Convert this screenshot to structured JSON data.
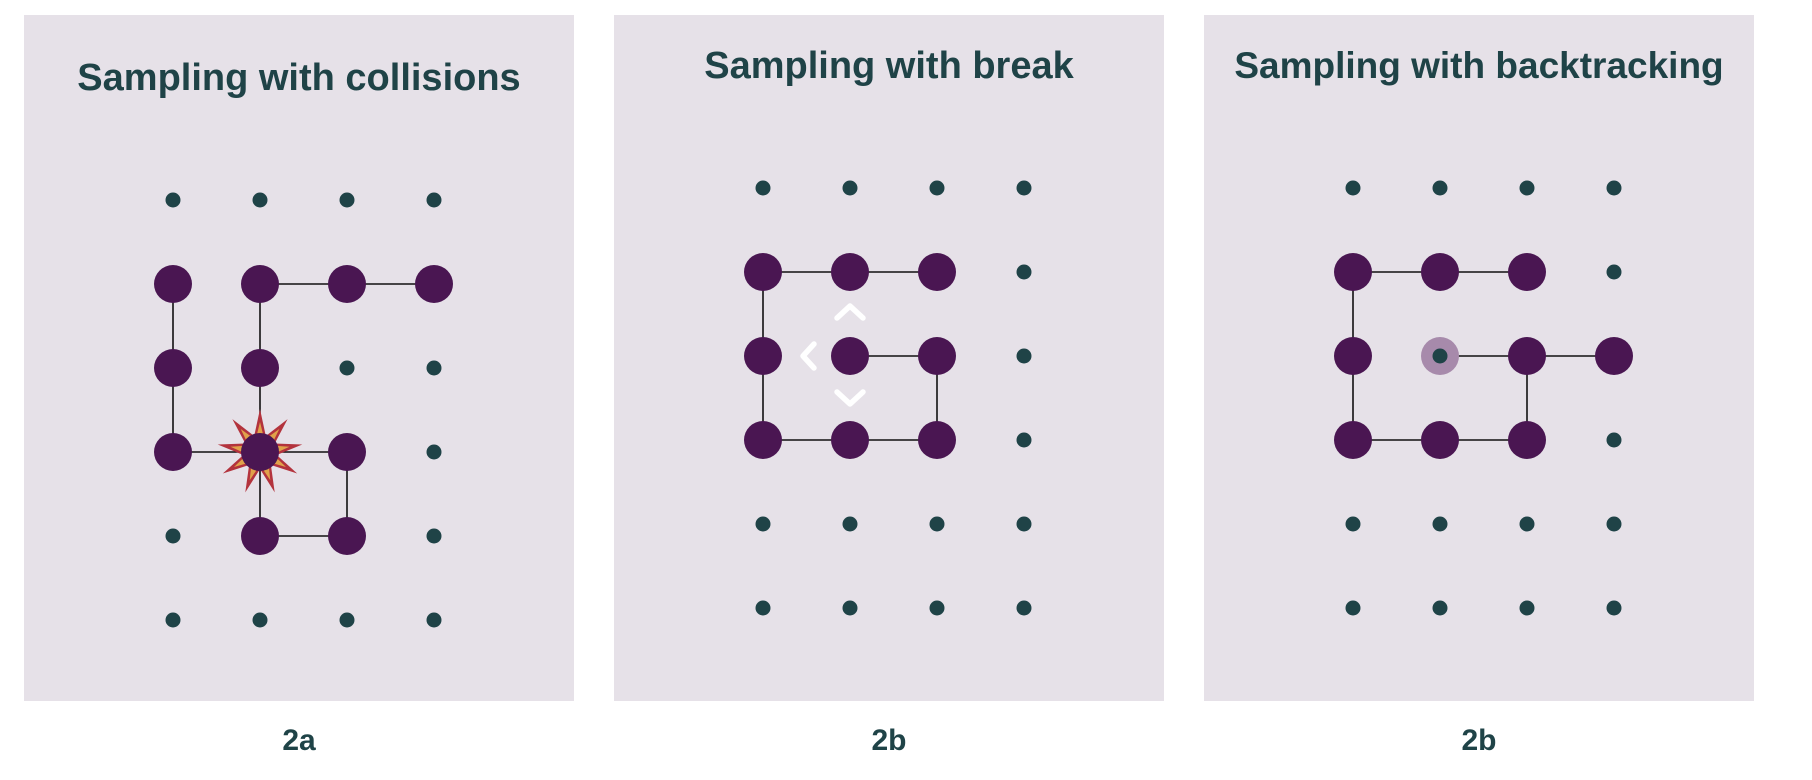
{
  "colors": {
    "panel_bg": "#e6e1e8",
    "text": "#1f4347",
    "small_dot": "#1f4347",
    "visited_node": "#4a1652",
    "edge": "#111111",
    "collision_outer": "#b3333d",
    "collision_inner": "#e0a24a",
    "backtrack_node": "#a78aab",
    "arrow": "#ffffff"
  },
  "panels": [
    {
      "title": "Sampling with collisions",
      "caption": "2a",
      "grid": {
        "cols": 4,
        "rows": 6
      },
      "visited": [
        [
          0,
          1
        ],
        [
          1,
          1
        ],
        [
          2,
          1
        ],
        [
          3,
          1
        ],
        [
          0,
          2
        ],
        [
          1,
          2
        ],
        [
          0,
          3
        ],
        [
          1,
          3
        ],
        [
          2,
          3
        ],
        [
          1,
          4
        ],
        [
          2,
          4
        ]
      ],
      "edges": [
        [
          [
            0,
            1
          ],
          [
            0,
            2
          ]
        ],
        [
          [
            0,
            2
          ],
          [
            0,
            3
          ]
        ],
        [
          [
            0,
            3
          ],
          [
            1,
            3
          ]
        ],
        [
          [
            1,
            3
          ],
          [
            2,
            3
          ]
        ],
        [
          [
            2,
            3
          ],
          [
            2,
            4
          ]
        ],
        [
          [
            2,
            4
          ],
          [
            1,
            4
          ]
        ],
        [
          [
            1,
            4
          ],
          [
            1,
            3
          ]
        ],
        [
          [
            1,
            3
          ],
          [
            1,
            2
          ]
        ],
        [
          [
            1,
            2
          ],
          [
            1,
            1
          ]
        ],
        [
          [
            1,
            1
          ],
          [
            2,
            1
          ]
        ],
        [
          [
            2,
            1
          ],
          [
            3,
            1
          ]
        ]
      ],
      "collision_at": [
        1,
        3
      ]
    },
    {
      "title": "Sampling with break",
      "caption": "2b",
      "grid": {
        "cols": 4,
        "rows": 6
      },
      "visited": [
        [
          0,
          1
        ],
        [
          1,
          1
        ],
        [
          2,
          1
        ],
        [
          0,
          2
        ],
        [
          1,
          2
        ],
        [
          2,
          2
        ],
        [
          0,
          3
        ],
        [
          1,
          3
        ],
        [
          2,
          3
        ]
      ],
      "edges": [
        [
          [
            2,
            1
          ],
          [
            1,
            1
          ]
        ],
        [
          [
            1,
            1
          ],
          [
            0,
            1
          ]
        ],
        [
          [
            0,
            1
          ],
          [
            0,
            2
          ]
        ],
        [
          [
            0,
            2
          ],
          [
            0,
            3
          ]
        ],
        [
          [
            0,
            3
          ],
          [
            1,
            3
          ]
        ],
        [
          [
            1,
            3
          ],
          [
            2,
            3
          ]
        ],
        [
          [
            2,
            3
          ],
          [
            2,
            2
          ]
        ],
        [
          [
            2,
            2
          ],
          [
            1,
            2
          ]
        ]
      ],
      "blocked_arrows_at": [
        1,
        2
      ],
      "blocked_directions": [
        "up",
        "left",
        "down"
      ]
    },
    {
      "title": "Sampling with backtracking",
      "caption": "2b",
      "grid": {
        "cols": 4,
        "rows": 6
      },
      "visited": [
        [
          0,
          1
        ],
        [
          1,
          1
        ],
        [
          2,
          1
        ],
        [
          0,
          2
        ],
        [
          2,
          2
        ],
        [
          3,
          2
        ],
        [
          0,
          3
        ],
        [
          1,
          3
        ],
        [
          2,
          3
        ]
      ],
      "edges": [
        [
          [
            2,
            1
          ],
          [
            1,
            1
          ]
        ],
        [
          [
            1,
            1
          ],
          [
            0,
            1
          ]
        ],
        [
          [
            0,
            1
          ],
          [
            0,
            2
          ]
        ],
        [
          [
            0,
            2
          ],
          [
            0,
            3
          ]
        ],
        [
          [
            0,
            3
          ],
          [
            1,
            3
          ]
        ],
        [
          [
            1,
            3
          ],
          [
            2,
            3
          ]
        ],
        [
          [
            2,
            3
          ],
          [
            2,
            2
          ]
        ],
        [
          [
            2,
            2
          ],
          [
            1,
            2
          ]
        ],
        [
          [
            2,
            2
          ],
          [
            3,
            2
          ]
        ]
      ],
      "backtracked": [
        [
          1,
          2
        ]
      ]
    }
  ]
}
